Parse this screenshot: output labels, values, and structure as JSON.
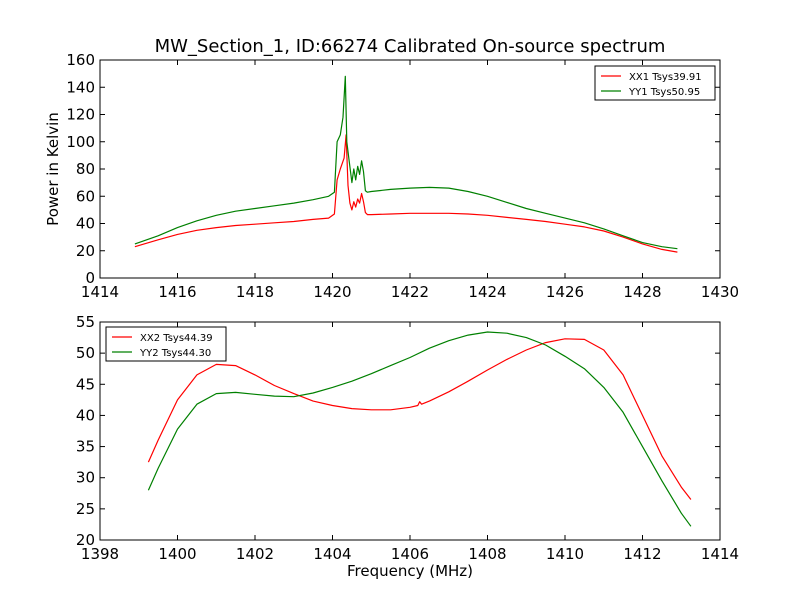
{
  "figure": {
    "title": "MW_Section_1, ID:66274 Calibrated On-source spectrum"
  },
  "chart_data": [
    {
      "type": "line",
      "title": "MW_Section_1, ID:66274 Calibrated On-source spectrum",
      "xlabel": "",
      "ylabel": "Power in Kelvin",
      "xlim": [
        1414,
        1430
      ],
      "ylim": [
        0,
        160
      ],
      "xticks": [
        "1414",
        "1416",
        "1418",
        "1420",
        "1422",
        "1424",
        "1426",
        "1428",
        "1430"
      ],
      "yticks": [
        "0",
        "20",
        "40",
        "60",
        "80",
        "100",
        "120",
        "140",
        "160"
      ],
      "grid": false,
      "legend_position": "top-right",
      "series": [
        {
          "name": "XX1 Tsys39.91",
          "color": "#ff0000",
          "x": [
            1414.9,
            1415.5,
            1416,
            1416.5,
            1417,
            1417.5,
            1418,
            1418.5,
            1419,
            1419.5,
            1419.9,
            1420.05,
            1420.12,
            1420.2,
            1420.3,
            1420.35,
            1420.4,
            1420.45,
            1420.5,
            1420.55,
            1420.6,
            1420.65,
            1420.7,
            1420.75,
            1420.8,
            1420.85,
            1420.9,
            1421,
            1421.5,
            1422,
            1422.5,
            1423,
            1423.5,
            1424,
            1424.5,
            1425,
            1425.5,
            1426,
            1426.5,
            1427,
            1427.5,
            1428,
            1428.5,
            1428.9
          ],
          "y": [
            23,
            28,
            32,
            35,
            37,
            38.5,
            39.5,
            40.5,
            41.5,
            43,
            44,
            47,
            72,
            80,
            88,
            105,
            68,
            55,
            50,
            56,
            52,
            58,
            55,
            62,
            56,
            48,
            46.5,
            46.5,
            47,
            47.5,
            47.5,
            47.5,
            47,
            46,
            44.5,
            43,
            41.5,
            39.5,
            37.5,
            34.5,
            30,
            25,
            21,
            19
          ]
        },
        {
          "name": "YY1 Tsys50.95",
          "color": "#008000",
          "x": [
            1414.9,
            1415.5,
            1416,
            1416.5,
            1417,
            1417.5,
            1418,
            1418.5,
            1419,
            1419.5,
            1419.9,
            1420.05,
            1420.12,
            1420.2,
            1420.27,
            1420.33,
            1420.37,
            1420.42,
            1420.5,
            1420.55,
            1420.6,
            1420.65,
            1420.7,
            1420.75,
            1420.8,
            1420.85,
            1420.9,
            1421,
            1421.5,
            1422,
            1422.5,
            1423,
            1423.5,
            1424,
            1424.5,
            1425,
            1425.5,
            1426,
            1426.5,
            1427,
            1427.5,
            1428,
            1428.5,
            1428.9
          ],
          "y": [
            25,
            31,
            37,
            42,
            46,
            49,
            51,
            53,
            55,
            57.5,
            60,
            63,
            100,
            105,
            118,
            148,
            100,
            88,
            70,
            80,
            72,
            82,
            76,
            86,
            78,
            64,
            63,
            63.5,
            65,
            66,
            66.5,
            66,
            63.5,
            60,
            55.5,
            51,
            47.5,
            44,
            40.5,
            36,
            31,
            26,
            23,
            21.5
          ]
        }
      ]
    },
    {
      "type": "line",
      "title": "",
      "xlabel": "Frequency (MHz)",
      "ylabel": "",
      "xlim": [
        1398,
        1414
      ],
      "ylim": [
        20,
        55
      ],
      "xticks": [
        "1398",
        "1400",
        "1402",
        "1404",
        "1406",
        "1408",
        "1410",
        "1412",
        "1414"
      ],
      "yticks": [
        "20",
        "25",
        "30",
        "35",
        "40",
        "45",
        "50",
        "55"
      ],
      "grid": false,
      "legend_position": "top-left",
      "series": [
        {
          "name": "XX2 Tsys44.39",
          "color": "#ff0000",
          "x": [
            1399.25,
            1399.5,
            1400,
            1400.5,
            1401,
            1401.5,
            1402,
            1402.5,
            1403,
            1403.5,
            1404,
            1404.5,
            1405,
            1405.5,
            1406,
            1406.2,
            1406.25,
            1406.3,
            1406.5,
            1407,
            1407.5,
            1408,
            1408.5,
            1409,
            1409.5,
            1410,
            1410.5,
            1411,
            1411.5,
            1412,
            1412.5,
            1413,
            1413.25
          ],
          "y": [
            32.5,
            36,
            42.5,
            46.5,
            48.2,
            48,
            46.5,
            44.8,
            43.5,
            42.3,
            41.6,
            41.1,
            40.9,
            40.9,
            41.3,
            41.6,
            42.2,
            41.8,
            42.3,
            43.8,
            45.5,
            47.3,
            49,
            50.5,
            51.7,
            52.3,
            52.2,
            50.5,
            46.5,
            40,
            33.5,
            28.5,
            26.5
          ]
        },
        {
          "name": "YY2 Tsys44.30",
          "color": "#008000",
          "x": [
            1399.25,
            1399.5,
            1400,
            1400.5,
            1401,
            1401.5,
            1402,
            1402.5,
            1403,
            1403.5,
            1404,
            1404.5,
            1405,
            1405.5,
            1406,
            1406.5,
            1407,
            1407.5,
            1408,
            1408.5,
            1409,
            1409.5,
            1410,
            1410.5,
            1411,
            1411.5,
            1412,
            1412.5,
            1413,
            1413.25
          ],
          "y": [
            28,
            31.5,
            37.8,
            41.8,
            43.5,
            43.7,
            43.4,
            43.1,
            43,
            43.6,
            44.5,
            45.5,
            46.7,
            48,
            49.3,
            50.8,
            52,
            52.9,
            53.4,
            53.2,
            52.5,
            51.3,
            49.5,
            47.5,
            44.5,
            40.5,
            35,
            29.5,
            24.3,
            22.2
          ]
        }
      ]
    }
  ]
}
